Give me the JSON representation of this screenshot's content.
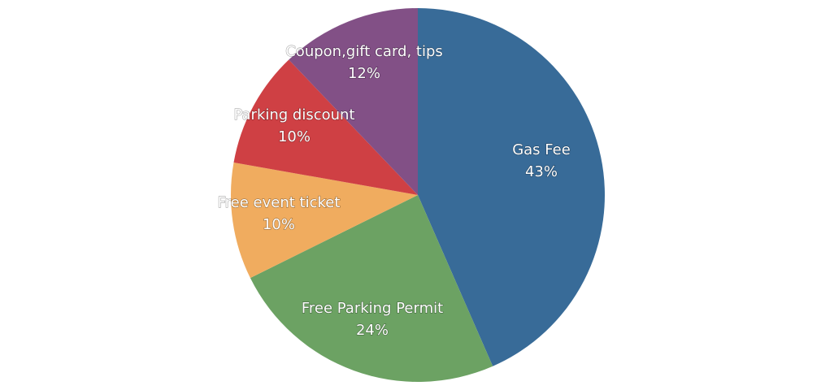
{
  "chart_data": {
    "type": "pie",
    "title": "",
    "start_angle_deg": 0,
    "direction": "clockwise",
    "slices": [
      {
        "label": "Gas Fee",
        "value": 43,
        "value_label": "43%",
        "color": "#386b98"
      },
      {
        "label": "Free Parking Permit",
        "value": 24,
        "value_label": "24%",
        "color": "#6ca263"
      },
      {
        "label": "Free event ticket",
        "value": 10,
        "value_label": "10%",
        "color": "#f0ac5f"
      },
      {
        "label": "Parking discount",
        "value": 10,
        "value_label": "10%",
        "color": "#cf4044"
      },
      {
        "label": "Coupon,gift card, tips",
        "value": 12,
        "value_label": "12%",
        "color": "#825086"
      }
    ]
  }
}
